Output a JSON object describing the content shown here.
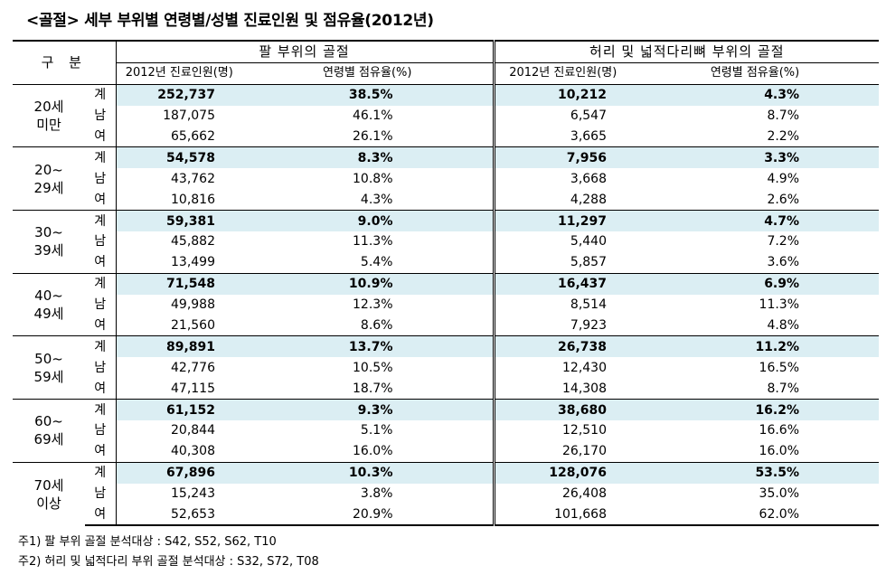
{
  "title": "<골절> 세부 부위별 연령별/성별 진료인원 및 점유율(2012년)",
  "header": {
    "gubun": "구 분",
    "arm_title": "팔 부위의 골절",
    "back_title": "허리 및 넓적다리뼈 부위의 골절",
    "col_patients": "2012년 진료인원(명)",
    "col_share": "연령별 점유율(%)"
  },
  "rows": [
    {
      "group": [
        "20세",
        "미만"
      ],
      "items": [
        {
          "sex": "계",
          "a1": "252,737",
          "a2": "38.5%",
          "b1": "10,212",
          "b2": "4.3%"
        },
        {
          "sex": "남",
          "a1": "187,075",
          "a2": "46.1%",
          "b1": "6,547",
          "b2": "8.7%"
        },
        {
          "sex": "여",
          "a1": "65,662",
          "a2": "26.1%",
          "b1": "3,665",
          "b2": "2.2%"
        }
      ]
    },
    {
      "group": [
        "20~",
        "29세"
      ],
      "items": [
        {
          "sex": "계",
          "a1": "54,578",
          "a2": "8.3%",
          "b1": "7,956",
          "b2": "3.3%"
        },
        {
          "sex": "남",
          "a1": "43,762",
          "a2": "10.8%",
          "b1": "3,668",
          "b2": "4.9%"
        },
        {
          "sex": "여",
          "a1": "10,816",
          "a2": "4.3%",
          "b1": "4,288",
          "b2": "2.6%"
        }
      ]
    },
    {
      "group": [
        "30~",
        "39세"
      ],
      "items": [
        {
          "sex": "계",
          "a1": "59,381",
          "a2": "9.0%",
          "b1": "11,297",
          "b2": "4.7%"
        },
        {
          "sex": "남",
          "a1": "45,882",
          "a2": "11.3%",
          "b1": "5,440",
          "b2": "7.2%"
        },
        {
          "sex": "여",
          "a1": "13,499",
          "a2": "5.4%",
          "b1": "5,857",
          "b2": "3.6%"
        }
      ]
    },
    {
      "group": [
        "40~",
        "49세"
      ],
      "items": [
        {
          "sex": "계",
          "a1": "71,548",
          "a2": "10.9%",
          "b1": "16,437",
          "b2": "6.9%"
        },
        {
          "sex": "남",
          "a1": "49,988",
          "a2": "12.3%",
          "b1": "8,514",
          "b2": "11.3%"
        },
        {
          "sex": "여",
          "a1": "21,560",
          "a2": "8.6%",
          "b1": "7,923",
          "b2": "4.8%"
        }
      ]
    },
    {
      "group": [
        "50~",
        "59세"
      ],
      "items": [
        {
          "sex": "계",
          "a1": "89,891",
          "a2": "13.7%",
          "b1": "26,738",
          "b2": "11.2%"
        },
        {
          "sex": "남",
          "a1": "42,776",
          "a2": "10.5%",
          "b1": "12,430",
          "b2": "16.5%"
        },
        {
          "sex": "여",
          "a1": "47,115",
          "a2": "18.7%",
          "b1": "14,308",
          "b2": "8.7%"
        }
      ]
    },
    {
      "group": [
        "60~",
        "69세"
      ],
      "items": [
        {
          "sex": "계",
          "a1": "61,152",
          "a2": "9.3%",
          "b1": "38,680",
          "b2": "16.2%"
        },
        {
          "sex": "남",
          "a1": "20,844",
          "a2": "5.1%",
          "b1": "12,510",
          "b2": "16.6%"
        },
        {
          "sex": "여",
          "a1": "40,308",
          "a2": "16.0%",
          "b1": "26,170",
          "b2": "16.0%"
        }
      ]
    },
    {
      "group": [
        "70세",
        "이상"
      ],
      "items": [
        {
          "sex": "계",
          "a1": "67,896",
          "a2": "10.3%",
          "b1": "128,076",
          "b2": "53.5%"
        },
        {
          "sex": "남",
          "a1": "15,243",
          "a2": "3.8%",
          "b1": "26,408",
          "b2": "35.0%"
        },
        {
          "sex": "여",
          "a1": "52,653",
          "a2": "20.9%",
          "b1": "101,668",
          "b2": "62.0%"
        }
      ]
    }
  ],
  "notes": [
    "주1) 팔 부위 골절 분석대상 : S42, S52, S62, T10",
    "주2) 허리 및 넓적다리 부위 골절 분석대상 : S32, S72, T08"
  ],
  "colors": {
    "total_row_bg": "#dbeef3"
  }
}
